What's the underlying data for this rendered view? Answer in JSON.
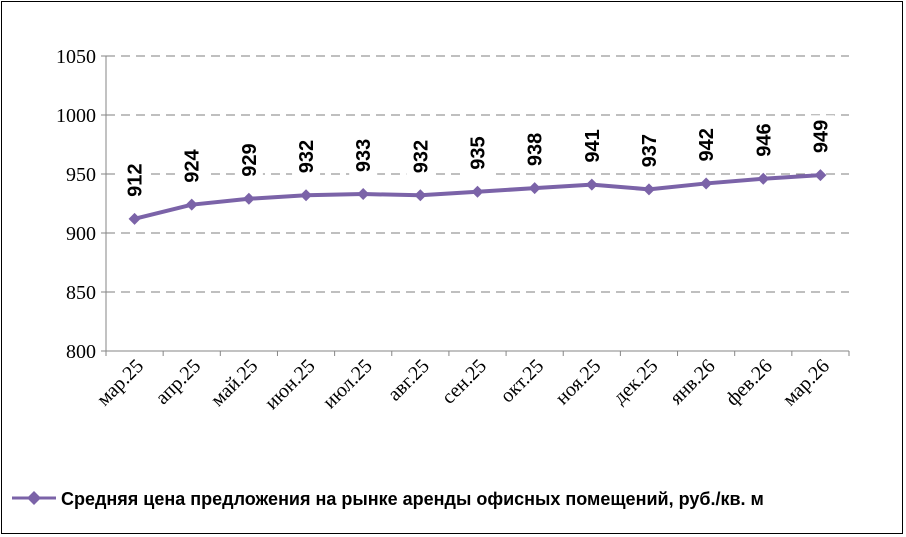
{
  "chart_data": {
    "type": "line",
    "title": "",
    "xlabel": "",
    "ylabel": "",
    "categories": [
      "мар.25",
      "апр.25",
      "май.25",
      "июн.25",
      "июл.25",
      "авг.25",
      "сен.25",
      "окт.25",
      "ноя.25",
      "дек.25",
      "янв.26",
      "фев.26",
      "мар.26"
    ],
    "series": [
      {
        "name": "Средняя цена предложения на рынке аренды офисных помещений,  руб./кв. м",
        "values": [
          912,
          924,
          929,
          932,
          933,
          932,
          935,
          938,
          941,
          937,
          942,
          946,
          949
        ],
        "color": "#7B63A8",
        "marker": "diamond"
      }
    ],
    "ylim": [
      800,
      1050
    ],
    "yticks": [
      800,
      850,
      900,
      950,
      1000,
      1050
    ],
    "grid": "horizontal dashed",
    "data_labels": true,
    "data_label_rotation": "vertical",
    "legend_position": "bottom"
  }
}
